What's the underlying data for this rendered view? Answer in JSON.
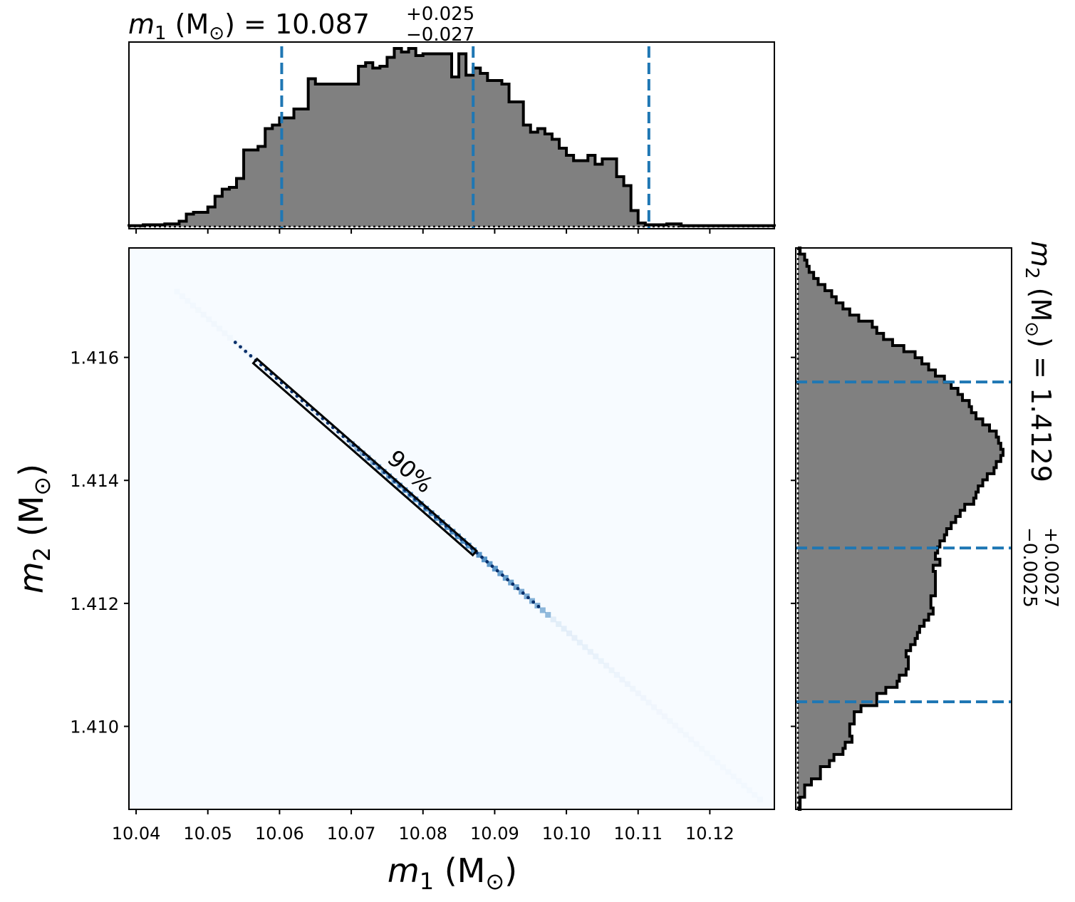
{
  "chart_data": {
    "type": "corner",
    "colors": {
      "hist_fill": "#808080",
      "hist_edge": "#000000",
      "quantile_line": "#1f77b4",
      "density_light": "#f7fbff",
      "density_mid": "#c6dbef",
      "density_dark": "#2171b5",
      "contour": "#08306b"
    },
    "top_title": {
      "var": "m",
      "sub": "1",
      "unit": "(M",
      "unit_sub": "⊙",
      "unit_close": ")",
      "equals": "=",
      "value": "10.087",
      "plus": "+0.025",
      "minus": "−0.027"
    },
    "right_title": {
      "var": "m",
      "sub": "2",
      "unit": "(M",
      "unit_sub": "⊙",
      "unit_close": ")",
      "equals": "=",
      "value": "1.4129",
      "plus": "+0.0027",
      "minus": "−0.0025"
    },
    "x_axis": {
      "label_var": "m",
      "label_sub": "1",
      "label_unit": "(M",
      "label_unit_sub": "⊙",
      "label_unit_close": ")",
      "range": [
        10.039,
        10.129
      ],
      "ticks": [
        10.04,
        10.05,
        10.06,
        10.07,
        10.08,
        10.09,
        10.1,
        10.11,
        10.12
      ],
      "tick_labels": [
        "10.04",
        "10.05",
        "10.06",
        "10.07",
        "10.08",
        "10.09",
        "10.10",
        "10.11",
        "10.12"
      ]
    },
    "y_axis": {
      "label_var": "m",
      "label_sub": "2",
      "label_unit": "(M",
      "label_unit_sub": "⊙",
      "label_unit_close": ")",
      "range": [
        1.40865,
        1.41778
      ],
      "ticks": [
        1.41,
        1.412,
        1.414,
        1.416
      ],
      "tick_labels": [
        "1.410",
        "1.412",
        "1.414",
        "1.416"
      ]
    },
    "m1_histogram": {
      "bin_edges": [
        10.039,
        10.129
      ],
      "counts": [
        0.5,
        0.5,
        1,
        1,
        1,
        1.5,
        1.5,
        3,
        7,
        8,
        8,
        11,
        17,
        21,
        22,
        27,
        43,
        43,
        45,
        55,
        57,
        61,
        61,
        66,
        66,
        83,
        80,
        80,
        80,
        80,
        80,
        80,
        90,
        92,
        89,
        90,
        95,
        100,
        98,
        100,
        96,
        97,
        97,
        97,
        97,
        84,
        97,
        85,
        89,
        86,
        82,
        82,
        80,
        70,
        70,
        57,
        53,
        55,
        52,
        49,
        44,
        40,
        37,
        37,
        40,
        35,
        38,
        38,
        28,
        23,
        9,
        2,
        1,
        1,
        1,
        1.5,
        1.5,
        0.5,
        0.5,
        0.5,
        0.5,
        0.5,
        0.5,
        0.5,
        0.5,
        0.5,
        0.5,
        0.5,
        0.5,
        0.5
      ],
      "quantiles": [
        10.0603,
        10.087,
        10.1115
      ]
    },
    "m2_histogram": {
      "bin_edges": [
        1.40865,
        1.41778
      ],
      "counts": [
        1,
        1,
        3,
        3,
        6,
        10,
        10,
        14,
        16,
        20,
        21,
        24,
        23,
        23,
        25,
        25,
        28,
        35,
        35,
        39,
        44,
        45,
        48,
        49,
        49,
        48,
        50,
        52,
        53,
        54,
        56,
        58,
        60,
        59,
        59,
        61,
        61,
        61,
        61,
        60,
        63,
        61,
        62,
        63,
        65,
        66,
        68,
        70,
        72,
        74,
        78,
        79,
        80,
        82,
        84,
        87,
        88,
        90,
        91,
        90,
        89,
        88,
        85,
        82,
        79,
        77,
        76,
        73,
        71,
        68,
        65,
        61,
        58,
        55,
        52,
        47,
        42,
        38,
        35,
        33,
        27,
        23,
        20,
        17,
        15,
        12,
        9,
        7,
        5,
        4,
        3,
        1
      ],
      "quantiles": [
        1.4104,
        1.4129,
        1.4156
      ]
    },
    "joint": {
      "points": [
        [
          10.0457,
          1.41707
        ],
        [
          10.127,
          1.40881
        ]
      ],
      "contour_level_label": "90%",
      "contour_90": [
        [
          10.0566,
          1.41594
        ],
        [
          10.0872,
          1.41282
        ]
      ]
    }
  }
}
